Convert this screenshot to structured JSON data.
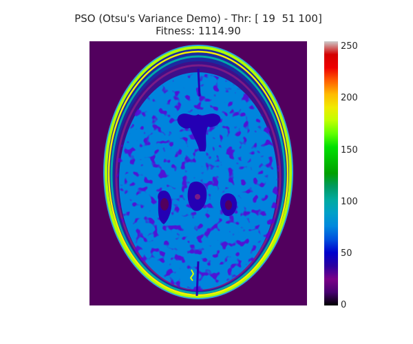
{
  "figure": {
    "title_line1": "PSO (Otsu's Variance Demo) - Thr: [ 19  51 100]",
    "title_line2": "Fitness: 1114.90"
  },
  "image": {
    "subject": "axial brain MRI slice, segmented",
    "colormap": "nipy_spectral",
    "background_color": "#52005e",
    "brain_color": "#0085dd",
    "dark_region_color": "#1c00a8",
    "skull_ring_colors": [
      "#a8ff00",
      "#ffee00",
      "#00a8a8",
      "#2aa9d9"
    ]
  },
  "colorbar": {
    "ticks": [
      "0",
      "50",
      "100",
      "150",
      "200",
      "250"
    ]
  }
}
